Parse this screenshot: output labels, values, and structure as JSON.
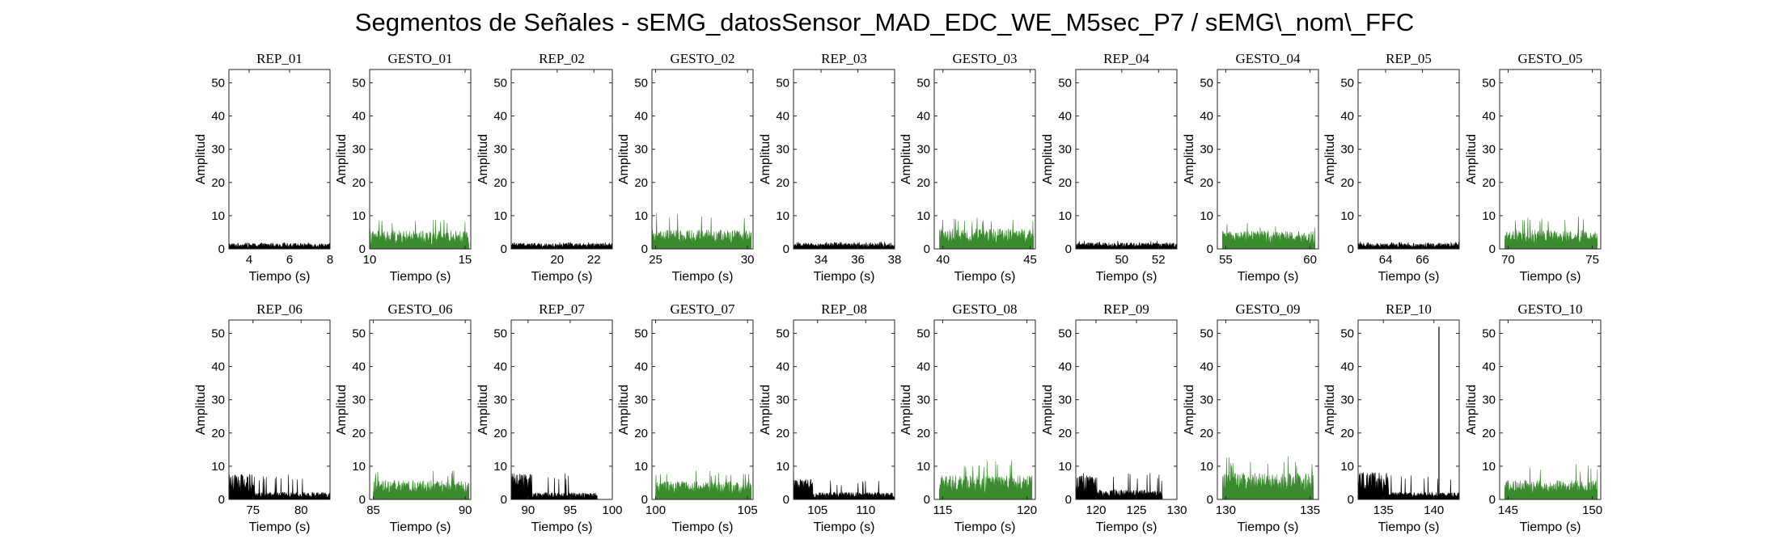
{
  "title": "Segmentos de Señales - sEMG_datosSensor_MAD_EDC_WE_M5sec_P7 / sEMG\\_nom\\_FFC",
  "colors": {
    "rep": "#000000",
    "gesto": "#3a8a2e"
  },
  "chart_data": [
    {
      "title": "REP_01",
      "type": "area",
      "xlim": [
        3,
        8
      ],
      "xticks": [
        4,
        6,
        8
      ],
      "ylim": [
        0,
        54
      ],
      "yticks": [
        0,
        10,
        20,
        30,
        40,
        50
      ],
      "xlabel": "Tiempo (s)",
      "ylabel": "Amplitud",
      "color": "rep",
      "data_range": [
        3,
        8
      ],
      "level": 1.2,
      "peak": 2.0
    },
    {
      "title": "GESTO_01",
      "type": "area",
      "xlim": [
        10,
        15.3
      ],
      "xticks": [
        10,
        15
      ],
      "ylim": [
        0,
        54
      ],
      "yticks": [
        0,
        10,
        20,
        30,
        40,
        50
      ],
      "xlabel": "Tiempo (s)",
      "ylabel": "Amplitud",
      "color": "gesto",
      "data_range": [
        10,
        15.2
      ],
      "level": 3.8,
      "peak": 9
    },
    {
      "title": "REP_02",
      "type": "area",
      "xlim": [
        17.5,
        23
      ],
      "xticks": [
        20,
        22
      ],
      "ylim": [
        0,
        54
      ],
      "yticks": [
        0,
        10,
        20,
        30,
        40,
        50
      ],
      "xlabel": "Tiempo (s)",
      "ylabel": "Amplitud",
      "color": "rep",
      "data_range": [
        17.5,
        23
      ],
      "level": 1.2,
      "peak": 2.0
    },
    {
      "title": "GESTO_02",
      "type": "area",
      "xlim": [
        24.8,
        30.3
      ],
      "xticks": [
        25,
        30
      ],
      "ylim": [
        0,
        54
      ],
      "yticks": [
        0,
        10,
        20,
        30,
        40,
        50
      ],
      "xlabel": "Tiempo (s)",
      "ylabel": "Amplitud",
      "color": "gesto",
      "data_range": [
        24.8,
        30.2
      ],
      "level": 4.0,
      "peak": 11
    },
    {
      "title": "REP_03",
      "type": "area",
      "xlim": [
        32.5,
        38
      ],
      "xticks": [
        34,
        36,
        38
      ],
      "ylim": [
        0,
        54
      ],
      "yticks": [
        0,
        10,
        20,
        30,
        40,
        50
      ],
      "xlabel": "Tiempo (s)",
      "ylabel": "Amplitud",
      "color": "rep",
      "data_range": [
        32.5,
        38
      ],
      "level": 1.2,
      "peak": 2.2
    },
    {
      "title": "GESTO_03",
      "type": "area",
      "xlim": [
        39.5,
        45.3
      ],
      "xticks": [
        40,
        45
      ],
      "ylim": [
        0,
        54
      ],
      "yticks": [
        0,
        10,
        20,
        30,
        40,
        50
      ],
      "xlabel": "Tiempo (s)",
      "ylabel": "Amplitud",
      "color": "gesto",
      "data_range": [
        39.8,
        45.2
      ],
      "level": 4.2,
      "peak": 10
    },
    {
      "title": "REP_04",
      "type": "area",
      "xlim": [
        47.5,
        53
      ],
      "xticks": [
        50,
        52
      ],
      "ylim": [
        0,
        54
      ],
      "yticks": [
        0,
        10,
        20,
        30,
        40,
        50
      ],
      "xlabel": "Tiempo (s)",
      "ylabel": "Amplitud",
      "color": "rep",
      "data_range": [
        47.5,
        53
      ],
      "level": 1.3,
      "peak": 2.5
    },
    {
      "title": "GESTO_04",
      "type": "area",
      "xlim": [
        54.5,
        60.5
      ],
      "xticks": [
        55,
        60
      ],
      "ylim": [
        0,
        54
      ],
      "yticks": [
        0,
        10,
        20,
        30,
        40,
        50
      ],
      "xlabel": "Tiempo (s)",
      "ylabel": "Amplitud",
      "color": "gesto",
      "data_range": [
        54.8,
        60.3
      ],
      "level": 3.8,
      "peak": 8
    },
    {
      "title": "REP_05",
      "type": "area",
      "xlim": [
        62.5,
        68
      ],
      "xticks": [
        64,
        66
      ],
      "ylim": [
        0,
        54
      ],
      "yticks": [
        0,
        10,
        20,
        30,
        40,
        50
      ],
      "xlabel": "Tiempo (s)",
      "ylabel": "Amplitud",
      "color": "rep",
      "data_range": [
        62.5,
        68
      ],
      "level": 1.2,
      "peak": 2.2
    },
    {
      "title": "GESTO_05",
      "type": "area",
      "xlim": [
        69.5,
        75.5
      ],
      "xticks": [
        70,
        75
      ],
      "ylim": [
        0,
        54
      ],
      "yticks": [
        0,
        10,
        20,
        30,
        40,
        50
      ],
      "xlabel": "Tiempo (s)",
      "ylabel": "Amplitud",
      "color": "gesto",
      "data_range": [
        69.8,
        75.3
      ],
      "level": 4.0,
      "peak": 10.5
    },
    {
      "title": "REP_06",
      "type": "area",
      "xlim": [
        72.5,
        83
      ],
      "xticks": [
        75,
        80
      ],
      "ylim": [
        0,
        54
      ],
      "yticks": [
        0,
        10,
        20,
        30,
        40,
        50
      ],
      "xlabel": "Tiempo (s)",
      "ylabel": "Amplitud",
      "color": "rep",
      "data_range": [
        72.5,
        83
      ],
      "level": 1.5,
      "peak": 7.5,
      "burst": [
        72.5,
        75.2
      ],
      "burst_level": 5.5
    },
    {
      "title": "GESTO_06",
      "type": "area",
      "xlim": [
        84.8,
        90.3
      ],
      "xticks": [
        85,
        90
      ],
      "ylim": [
        0,
        54
      ],
      "yticks": [
        0,
        10,
        20,
        30,
        40,
        50
      ],
      "xlabel": "Tiempo (s)",
      "ylabel": "Amplitud",
      "color": "gesto",
      "data_range": [
        85,
        90.2
      ],
      "level": 4.0,
      "peak": 9
    },
    {
      "title": "REP_07",
      "type": "area",
      "xlim": [
        88,
        100
      ],
      "xticks": [
        90,
        95,
        100
      ],
      "ylim": [
        0,
        54
      ],
      "yticks": [
        0,
        10,
        20,
        30,
        40,
        50
      ],
      "xlabel": "Tiempo (s)",
      "ylabel": "Amplitud",
      "color": "rep",
      "data_range": [
        88,
        98.2
      ],
      "level": 1.4,
      "peak": 8,
      "burst": [
        88,
        90.5
      ],
      "burst_level": 5.5
    },
    {
      "title": "GESTO_07",
      "type": "area",
      "xlim": [
        99.8,
        105.3
      ],
      "xticks": [
        100,
        105
      ],
      "ylim": [
        0,
        54
      ],
      "yticks": [
        0,
        10,
        20,
        30,
        40,
        50
      ],
      "xlabel": "Tiempo (s)",
      "ylabel": "Amplitud",
      "color": "gesto",
      "data_range": [
        100,
        105.2
      ],
      "level": 3.8,
      "peak": 9
    },
    {
      "title": "REP_08",
      "type": "area",
      "xlim": [
        102.5,
        113
      ],
      "xticks": [
        105,
        110
      ],
      "ylim": [
        0,
        54
      ],
      "yticks": [
        0,
        10,
        20,
        30,
        40,
        50
      ],
      "xlabel": "Tiempo (s)",
      "ylabel": "Amplitud",
      "color": "rep",
      "data_range": [
        102.5,
        113
      ],
      "level": 1.5,
      "peak": 6,
      "burst": [
        102.5,
        104.5
      ],
      "burst_level": 4.5
    },
    {
      "title": "GESTO_08",
      "type": "area",
      "xlim": [
        114.5,
        120.5
      ],
      "xticks": [
        115,
        120
      ],
      "ylim": [
        0,
        54
      ],
      "yticks": [
        0,
        10,
        20,
        30,
        40,
        50
      ],
      "xlabel": "Tiempo (s)",
      "ylabel": "Amplitud",
      "color": "gesto",
      "data_range": [
        114.8,
        120.3
      ],
      "level": 5.0,
      "peak": 12
    },
    {
      "title": "REP_09",
      "type": "area",
      "xlim": [
        117.5,
        130
      ],
      "xticks": [
        120,
        125,
        130
      ],
      "ylim": [
        0,
        54
      ],
      "yticks": [
        0,
        10,
        20,
        30,
        40,
        50
      ],
      "xlabel": "Tiempo (s)",
      "ylabel": "Amplitud",
      "color": "rep",
      "data_range": [
        117.5,
        128.2
      ],
      "level": 2.0,
      "peak": 8,
      "burst": [
        117.5,
        120
      ],
      "burst_level": 5.0
    },
    {
      "title": "GESTO_09",
      "type": "area",
      "xlim": [
        129.5,
        135.5
      ],
      "xticks": [
        130,
        135
      ],
      "ylim": [
        0,
        54
      ],
      "yticks": [
        0,
        10,
        20,
        30,
        40,
        50
      ],
      "xlabel": "Tiempo (s)",
      "ylabel": "Amplitud",
      "color": "gesto",
      "data_range": [
        129.8,
        135.2
      ],
      "level": 5.5,
      "peak": 13
    },
    {
      "title": "REP_10",
      "type": "area",
      "xlim": [
        132.5,
        142.5
      ],
      "xticks": [
        135,
        140
      ],
      "ylim": [
        0,
        54
      ],
      "yticks": [
        0,
        10,
        20,
        30,
        40,
        50
      ],
      "xlabel": "Tiempo (s)",
      "ylabel": "Amplitud",
      "color": "rep",
      "data_range": [
        132.5,
        142.5
      ],
      "level": 1.5,
      "peak": 8,
      "burst": [
        132.5,
        135.5
      ],
      "burst_level": 6.0,
      "spike_x": 140.5,
      "spike_y": 52
    },
    {
      "title": "GESTO_10",
      "type": "area",
      "xlim": [
        144.5,
        150.5
      ],
      "xticks": [
        145,
        150
      ],
      "ylim": [
        0,
        54
      ],
      "yticks": [
        0,
        10,
        20,
        30,
        40,
        50
      ],
      "xlabel": "Tiempo (s)",
      "ylabel": "Amplitud",
      "color": "gesto",
      "data_range": [
        144.8,
        150.3
      ],
      "level": 4.0,
      "peak": 11
    }
  ]
}
